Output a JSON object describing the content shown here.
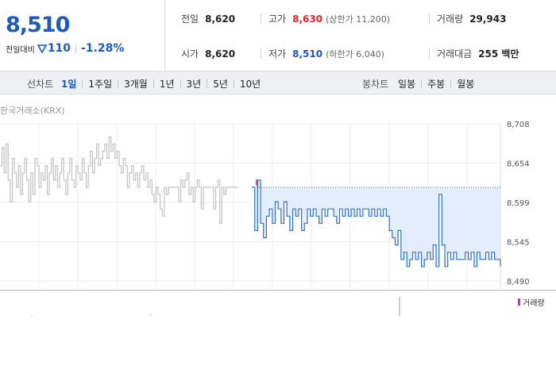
{
  "quote": {
    "current_price": "8,510",
    "change_label": "전일대비",
    "change_amount": "110",
    "change_rate": "-1.28%",
    "prev_close": {
      "label": "전일",
      "value": "8,620"
    },
    "high": {
      "label": "고가",
      "value": "8,630",
      "limit_text": "(상한가 11,200)"
    },
    "volume": {
      "label": "거래량",
      "value": "29,943"
    },
    "open": {
      "label": "시가",
      "value": "8,620"
    },
    "low": {
      "label": "저가",
      "value": "8,510",
      "limit_text": "(하한가 6,040)"
    },
    "trade_value": {
      "label": "거래대금",
      "value": "255 백만"
    }
  },
  "period_bar": {
    "line_chart_title": "선차트",
    "periods": [
      {
        "label": "1일",
        "active": true
      },
      {
        "label": "1주일",
        "active": false
      },
      {
        "label": "3개월",
        "active": false
      },
      {
        "label": "1년",
        "active": false
      },
      {
        "label": "3년",
        "active": false
      },
      {
        "label": "5년",
        "active": false
      },
      {
        "label": "10년",
        "active": false
      }
    ],
    "candle_chart_title": "봉차트",
    "candles": [
      {
        "label": "일봉"
      },
      {
        "label": "주봉"
      },
      {
        "label": "월봉"
      }
    ]
  },
  "chart": {
    "exchange_label": "한국거래소(KRX)",
    "volume_legend": "거래량"
  },
  "colors": {
    "down_blue": "#1a59c6",
    "up_red": "#e0262b",
    "today_line": "#2f74d0",
    "today_fill": "#e4edfb",
    "prev_line": "#c2c2c2",
    "volume": "#8a55c9"
  },
  "chart_data": {
    "type": "line",
    "title": "",
    "xlabel": "",
    "ylabel": "",
    "ylim": [
      8490,
      8708
    ],
    "y_ticks": [
      "8,708",
      "8,654",
      "8,599",
      "8,545",
      "8,490"
    ],
    "reference_price": 8620,
    "series": [
      {
        "name": "",
        "values": [
          8650,
          8675,
          8640,
          8680,
          8630,
          8600,
          8660,
          8640,
          8620,
          8650,
          8610,
          8640,
          8660,
          8630,
          8600,
          8640,
          8610,
          8660,
          8650,
          8620,
          8640,
          8630,
          8650,
          8610,
          8640,
          8660,
          8630,
          8650,
          8620,
          8640,
          8660,
          8630,
          8610,
          8640,
          8660,
          8630,
          8620,
          8650,
          8640,
          8630,
          8660,
          8640,
          8620,
          8650,
          8670,
          8640,
          8660,
          8680,
          8650,
          8660,
          8670,
          8680,
          8660,
          8690,
          8670,
          8680,
          8660,
          8670,
          8650,
          8640,
          8660,
          8650,
          8620,
          8640,
          8650,
          8630,
          8640,
          8620,
          8640,
          8650,
          8630,
          8640,
          8620,
          8630,
          8610,
          8600,
          8620,
          8610,
          8590,
          8580,
          8620,
          8610,
          8620,
          8620,
          8620,
          8620,
          8620,
          8600,
          8630,
          8620,
          8630,
          8640,
          8610,
          8620,
          8600,
          8620,
          8630,
          8620,
          8590,
          8620,
          8620,
          8620,
          8620,
          8620,
          8590,
          8620,
          8630,
          8570,
          8620,
          8610,
          8620,
          8620,
          8620,
          8620,
          8620,
          8620,
          8620
        ]
      },
      {
        "name": "",
        "values": [
          8620,
          8560,
          8630,
          8570,
          8550,
          8580,
          8590,
          8570,
          8600,
          8590,
          8570,
          8600,
          8580,
          8560,
          8590,
          8580,
          8590,
          8560,
          8570,
          8590,
          8580,
          8590,
          8580,
          8570,
          8590,
          8580,
          8590,
          8590,
          8580,
          8570,
          8590,
          8580,
          8590,
          8580,
          8590,
          8580,
          8590,
          8580,
          8590,
          8590,
          8580,
          8590,
          8580,
          8590,
          8580,
          8590,
          8580,
          8560,
          8550,
          8540,
          8560,
          8520,
          8530,
          8510,
          8520,
          8530,
          8520,
          8530,
          8510,
          8520,
          8530,
          8520,
          8540,
          8510,
          8610,
          8540,
          8510,
          8530,
          8520,
          8530,
          8520,
          8520,
          8520,
          8530,
          8520,
          8530,
          8510,
          8530,
          8520,
          8520,
          8530,
          8520,
          8530,
          8520,
          8520,
          8510
        ]
      }
    ],
    "grid": true
  }
}
